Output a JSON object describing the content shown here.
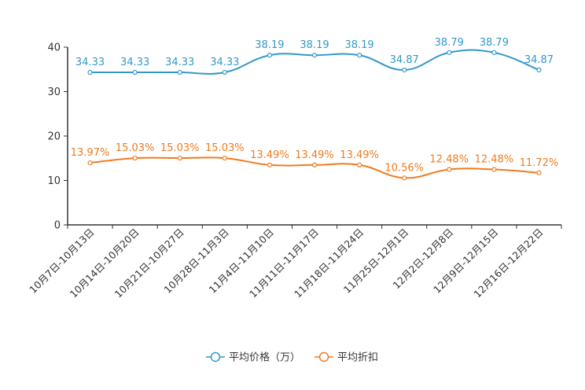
{
  "chart_data": {
    "type": "line",
    "title": "",
    "xlabel": "",
    "ylabel": "",
    "ylim": [
      0,
      40
    ],
    "yticks": [
      0,
      10,
      20,
      30,
      40
    ],
    "grid": false,
    "legend_position": "bottom-center",
    "categories": [
      "10月7日-10月13日",
      "10月14日-10月20日",
      "10月21日-10月27日",
      "10月28日-11月3日",
      "11月4日-11月10日",
      "11月11日-11月17日",
      "11月18日-11月24日",
      "11月25日-12月1日",
      "12月2日-12月8日",
      "12月9日-12月15日",
      "12月16日-12月22日"
    ],
    "series": [
      {
        "name": "平均价格（万）",
        "color": "#3398c9",
        "values": [
          34.33,
          34.33,
          34.33,
          34.33,
          38.19,
          38.19,
          38.19,
          34.87,
          38.79,
          38.79,
          34.87
        ],
        "labels": [
          "34.33",
          "34.33",
          "34.33",
          "34.33",
          "38.19",
          "38.19",
          "38.19",
          "34.87",
          "38.79",
          "38.79",
          "34.87"
        ]
      },
      {
        "name": "平均折扣",
        "color": "#f07b1f",
        "values": [
          13.97,
          15.03,
          15.03,
          15.03,
          13.49,
          13.49,
          13.49,
          10.56,
          12.48,
          12.48,
          11.72
        ],
        "labels": [
          "13.97%",
          "15.03%",
          "15.03%",
          "15.03%",
          "13.49%",
          "13.49%",
          "13.49%",
          "10.56%",
          "12.48%",
          "12.48%",
          "11.72%"
        ]
      }
    ]
  }
}
